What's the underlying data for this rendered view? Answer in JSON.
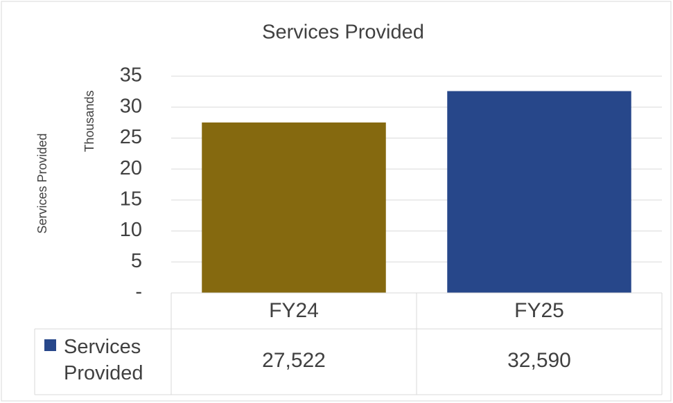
{
  "chart_data": {
    "type": "bar",
    "title": "Services Provided",
    "y_axis_label": "Services Provided",
    "y_axis_unit": "Thousands",
    "categories": [
      "FY24",
      "FY25"
    ],
    "series": [
      {
        "name": "Services Provided",
        "color": "#27478a",
        "point_colors": [
          "#85690f",
          "#27478a"
        ],
        "values": [
          27.522,
          32.59
        ],
        "value_labels": [
          "27,522",
          "32,590"
        ]
      }
    ],
    "ylim": [
      0,
      35
    ],
    "yticks": [
      {
        "value": 0,
        "label": "-"
      },
      5,
      10,
      15,
      20,
      25,
      30,
      35
    ],
    "grid": true,
    "data_table": true
  }
}
